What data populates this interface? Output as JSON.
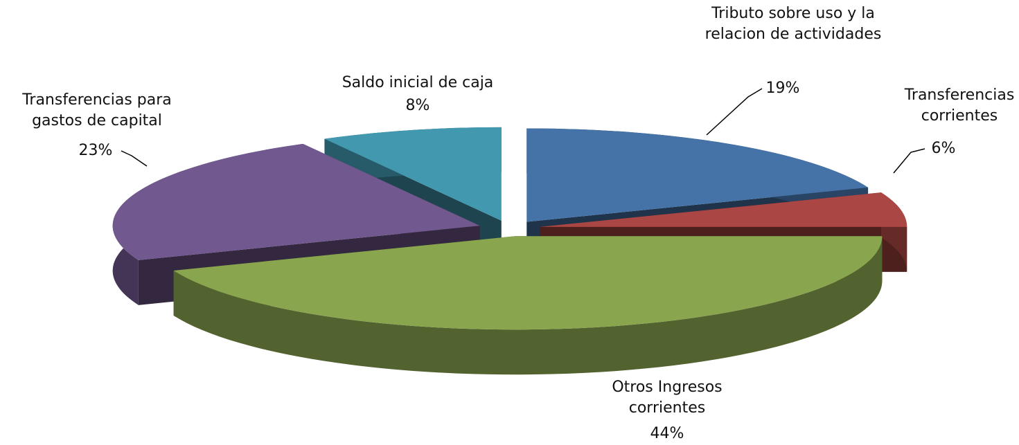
{
  "chart_data": {
    "type": "pie",
    "categories": [
      "Tributo sobre uso y la relacion de actividades",
      "Transferencias corrientes",
      "Otros Ingresos corrientes",
      "Transferencias para gastos de capital",
      "Saldo inicial de caja"
    ],
    "values": [
      19,
      6,
      44,
      23,
      8
    ],
    "value_labels": [
      "19%",
      "6%",
      "44%",
      "23%",
      "8%"
    ],
    "colors": [
      "#4572a7",
      "#aa4643",
      "#89a54e",
      "#71588f",
      "#4198af"
    ]
  }
}
